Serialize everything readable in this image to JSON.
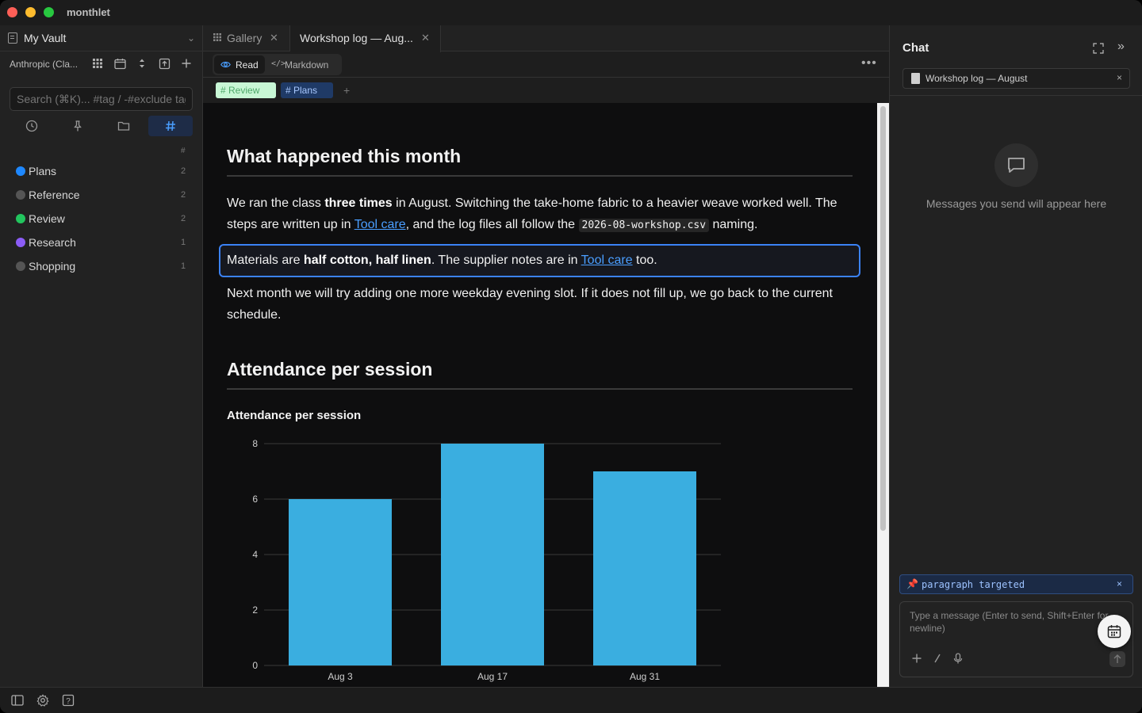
{
  "app": {
    "title": "monthlet"
  },
  "sidebar": {
    "vault_name": "My Vault",
    "provider": "Anthropic (Cla...",
    "search_placeholder": "Search (⌘K)... #tag / -#exclude tag",
    "hash_header": "#",
    "tags": [
      {
        "name": "Plans",
        "count": "2",
        "color": "#1e88ff"
      },
      {
        "name": "Reference",
        "count": "2",
        "color": "#555555"
      },
      {
        "name": "Review",
        "count": "2",
        "color": "#22c55e"
      },
      {
        "name": "Research",
        "count": "1",
        "color": "#8b5cf6"
      },
      {
        "name": "Shopping",
        "count": "1",
        "color": "#555555"
      }
    ]
  },
  "tabs": [
    {
      "label": "Gallery",
      "icon": "grid-icon"
    },
    {
      "label": "Workshop log — Aug...",
      "icon": ""
    }
  ],
  "modes": {
    "read": "Read",
    "markdown": "Markdown"
  },
  "note_tags": {
    "review": "# Review",
    "plans": "# Plans",
    "add": "+"
  },
  "doc": {
    "h1": "What happened this month",
    "p1": {
      "a": "We ran the class ",
      "b": "three times",
      "c": " in August. Switching the take-home fabric to a heavier weave worked well. The steps are written up in ",
      "link": "Tool care",
      "d": ", and the log files all follow the ",
      "code": "2026-08-workshop.csv",
      "e": " naming."
    },
    "p2": {
      "a": "Materials are ",
      "b": "half cotton, half linen",
      "c": ". The supplier notes are in ",
      "link": "Tool care",
      "d": " too."
    },
    "p3": "Next month we will try adding one more weekday evening slot. If it does not fill up, we go back to the current schedule.",
    "h2": "Attendance per session",
    "chart_title": "Attendance per session"
  },
  "chart_data": {
    "type": "bar",
    "title": "Attendance per session",
    "categories": [
      "Aug 3",
      "Aug 17",
      "Aug 31"
    ],
    "values": [
      6,
      8,
      7
    ],
    "ylim": [
      0,
      8
    ],
    "yticks": [
      "0",
      "2",
      "4",
      "6",
      "8"
    ],
    "color": "#3aaee0",
    "grid": true
  },
  "chat": {
    "title": "Chat",
    "context_file": "Workshop log — August",
    "empty_text": "Messages you send will appear here",
    "pill": "paragraph targeted",
    "composer_placeholder": "Type a message (Enter to send, Shift+Enter for newline)"
  }
}
